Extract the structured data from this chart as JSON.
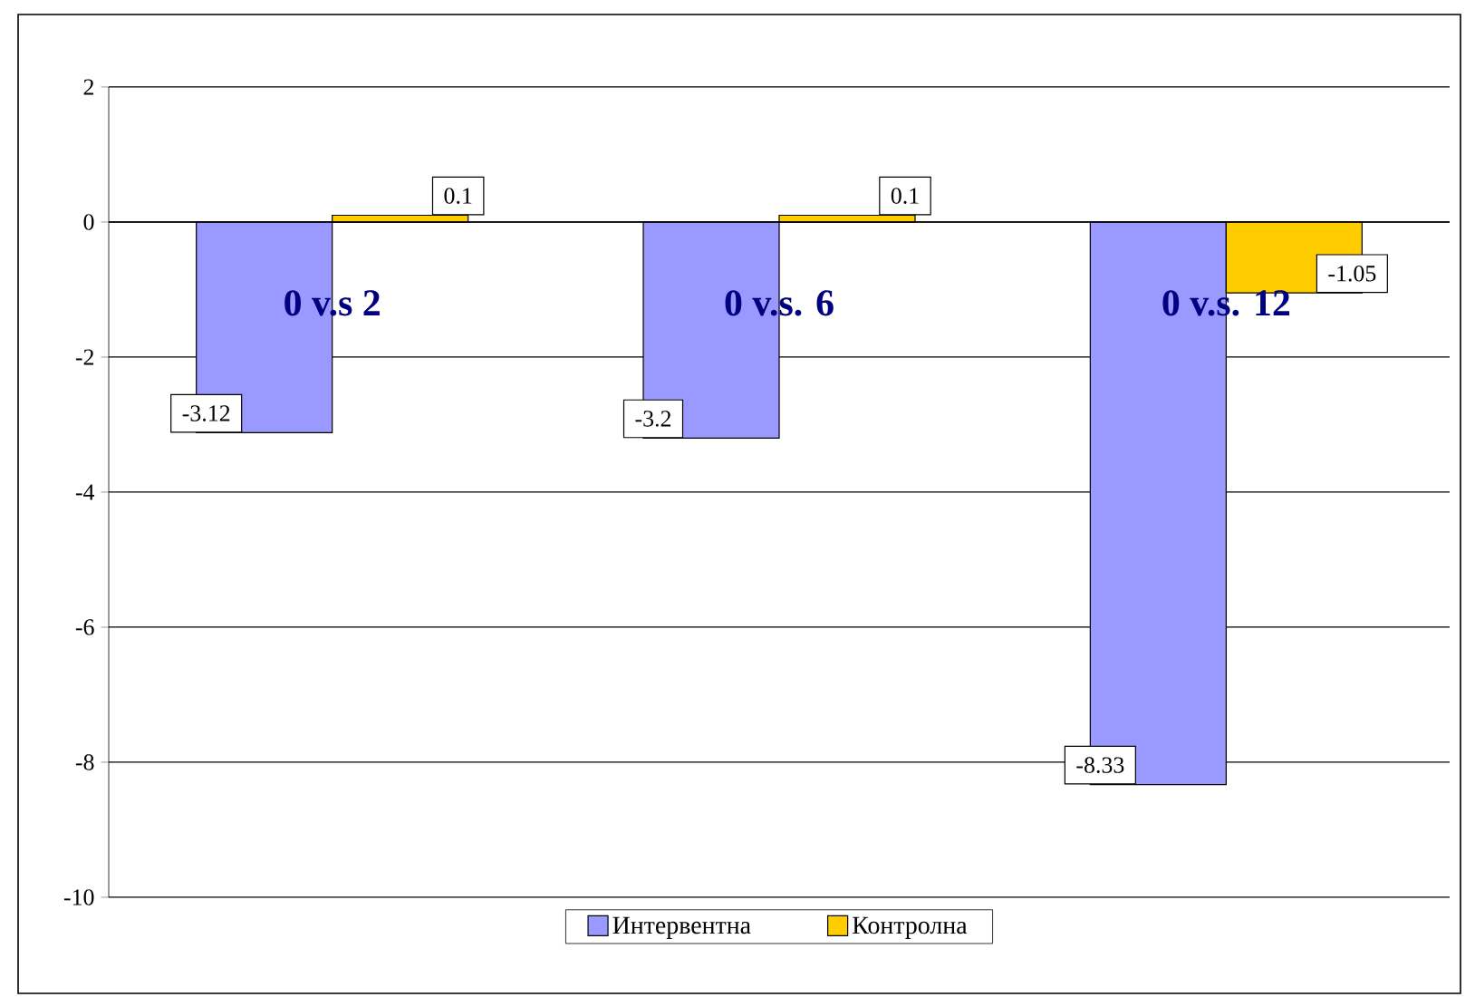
{
  "chart_data": {
    "type": "bar",
    "categories": [
      "0 v.s 2",
      "0 v.s. 6",
      "0 v.s. 12"
    ],
    "series": [
      {
        "name": "Интервентна",
        "color": "#9999ff",
        "values": [
          -3.12,
          -3.2,
          -8.33
        ]
      },
      {
        "name": "Контролна",
        "color": "#ffcc00",
        "values": [
          0.1,
          0.1,
          -1.05
        ]
      }
    ],
    "ylim": [
      -10,
      2
    ],
    "yticks": [
      -10,
      -8,
      -6,
      -4,
      -2,
      0,
      2
    ],
    "grid": "y",
    "legend": "bottom",
    "data_labels": true
  }
}
